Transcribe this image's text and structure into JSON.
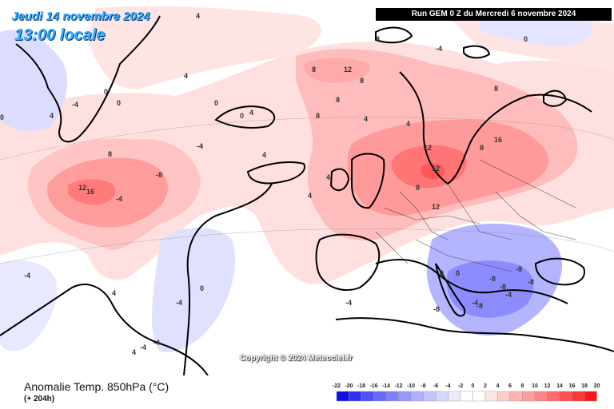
{
  "header": {
    "date": "Jeudi 14 novembre 2024",
    "time": "13:00 locale",
    "run": "Run GEM 0 Z du Mercredi 6 novembre 2024"
  },
  "watermark": "Copyright © 2024 Meteociel.fr",
  "footer": {
    "product": "Anomalie Temp. 850hPa (°C)",
    "lead": "(+ 204h)"
  },
  "legend": {
    "ticks": [
      "-22",
      "-20",
      "-18",
      "-16",
      "-14",
      "-12",
      "-10",
      "-8",
      "-6",
      "-4",
      "-2",
      "0",
      "2",
      "4",
      "6",
      "8",
      "10",
      "12",
      "14",
      "16",
      "18",
      "20"
    ],
    "colors": [
      "#1010e0",
      "#3030f0",
      "#5050f8",
      "#6868ff",
      "#8080ff",
      "#9898ff",
      "#b0b0ff",
      "#c4c4ff",
      "#d8d8ff",
      "#eaeaff",
      "#ffffff",
      "#ffffff",
      "#ffe4e4",
      "#ffcccc",
      "#ffb4b4",
      "#ff9c9c",
      "#ff8484",
      "#ff6c6c",
      "#ff5050",
      "#ff3434",
      "#f81818"
    ]
  },
  "contour_labels": [
    "0",
    "4",
    "8",
    "12",
    "16",
    "-4",
    "-8",
    "-4",
    "-4",
    "0",
    "4",
    "8",
    "12",
    "12",
    "12",
    "8",
    "8",
    "16",
    "12",
    "8",
    "8",
    "4",
    "4",
    "4",
    "4",
    "0",
    "0",
    "-4",
    "-8",
    "-8",
    "-8",
    "-8",
    "-8",
    "-8",
    "-4",
    "-4",
    "-4",
    "4",
    "0",
    "0",
    "-4",
    "-4",
    "4",
    "4",
    "4",
    "-4",
    "-4",
    "0",
    "8",
    "8",
    "8",
    "4",
    "4",
    "0",
    "0"
  ]
}
